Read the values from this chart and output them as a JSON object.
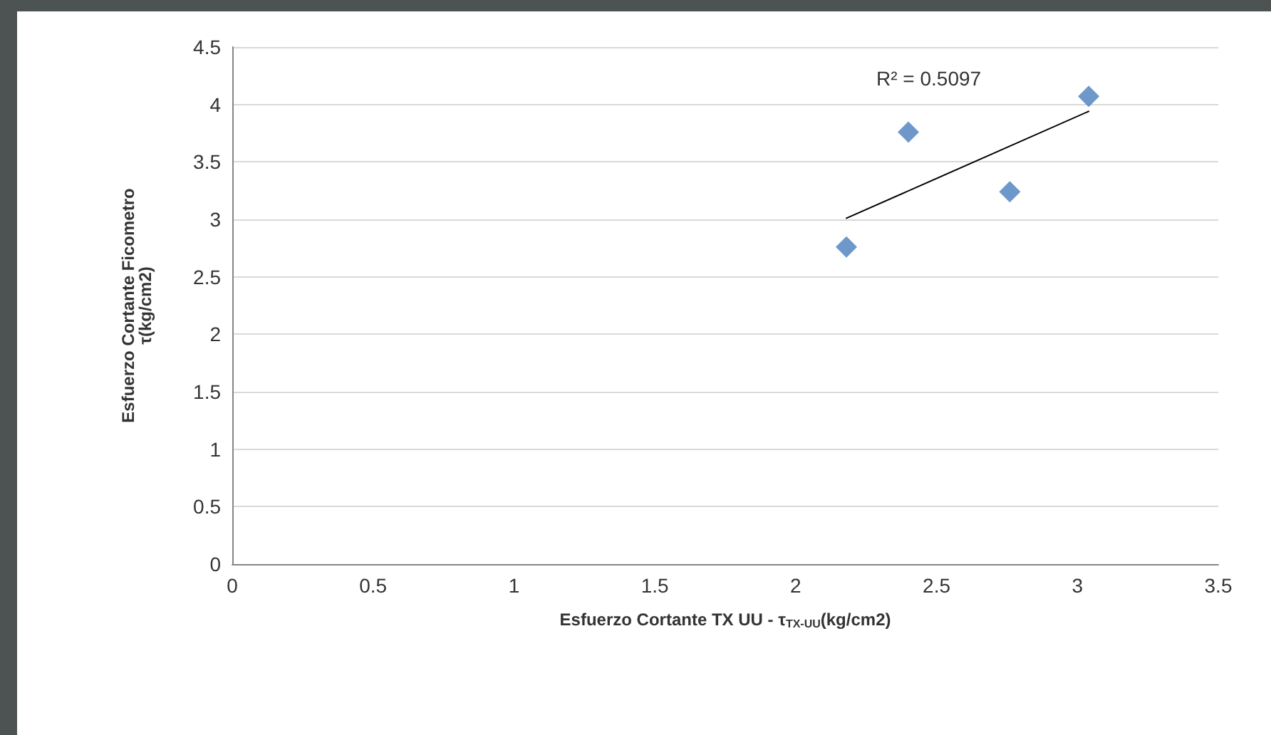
{
  "chart_data": {
    "type": "scatter",
    "xlabel": "Esfuerzo Cortante TX UU - τ$_{TX-UU}$(kg/cm2)",
    "ylabel": "Esfuerzo Cortante Ficometro\nτ(kg/cm2)",
    "marker": "diamond",
    "series": [
      {
        "color": "#4a7ebb",
        "x": [
          2.18,
          2.4,
          2.76,
          3.04
        ],
        "values": [
          2.76,
          3.76,
          3.24,
          4.07
        ]
      },
      {
        "type": "line",
        "color": "#000000",
        "marker": "none",
        "x": [
          2.18,
          3.04
        ],
        "values": [
          3.01,
          3.94
        ]
      }
    ],
    "annotations": [
      "R² = 0.5097"
    ],
    "xlim": [
      0,
      3.5
    ],
    "xticks": [
      0,
      0.5,
      1,
      1.5,
      2,
      2.5,
      3,
      3.5
    ],
    "ylim": [
      0,
      4.5
    ],
    "yticks": [
      0,
      0.5,
      1,
      1.5,
      2,
      2.5,
      3,
      3.5,
      4,
      4.5
    ],
    "grid": "y"
  }
}
